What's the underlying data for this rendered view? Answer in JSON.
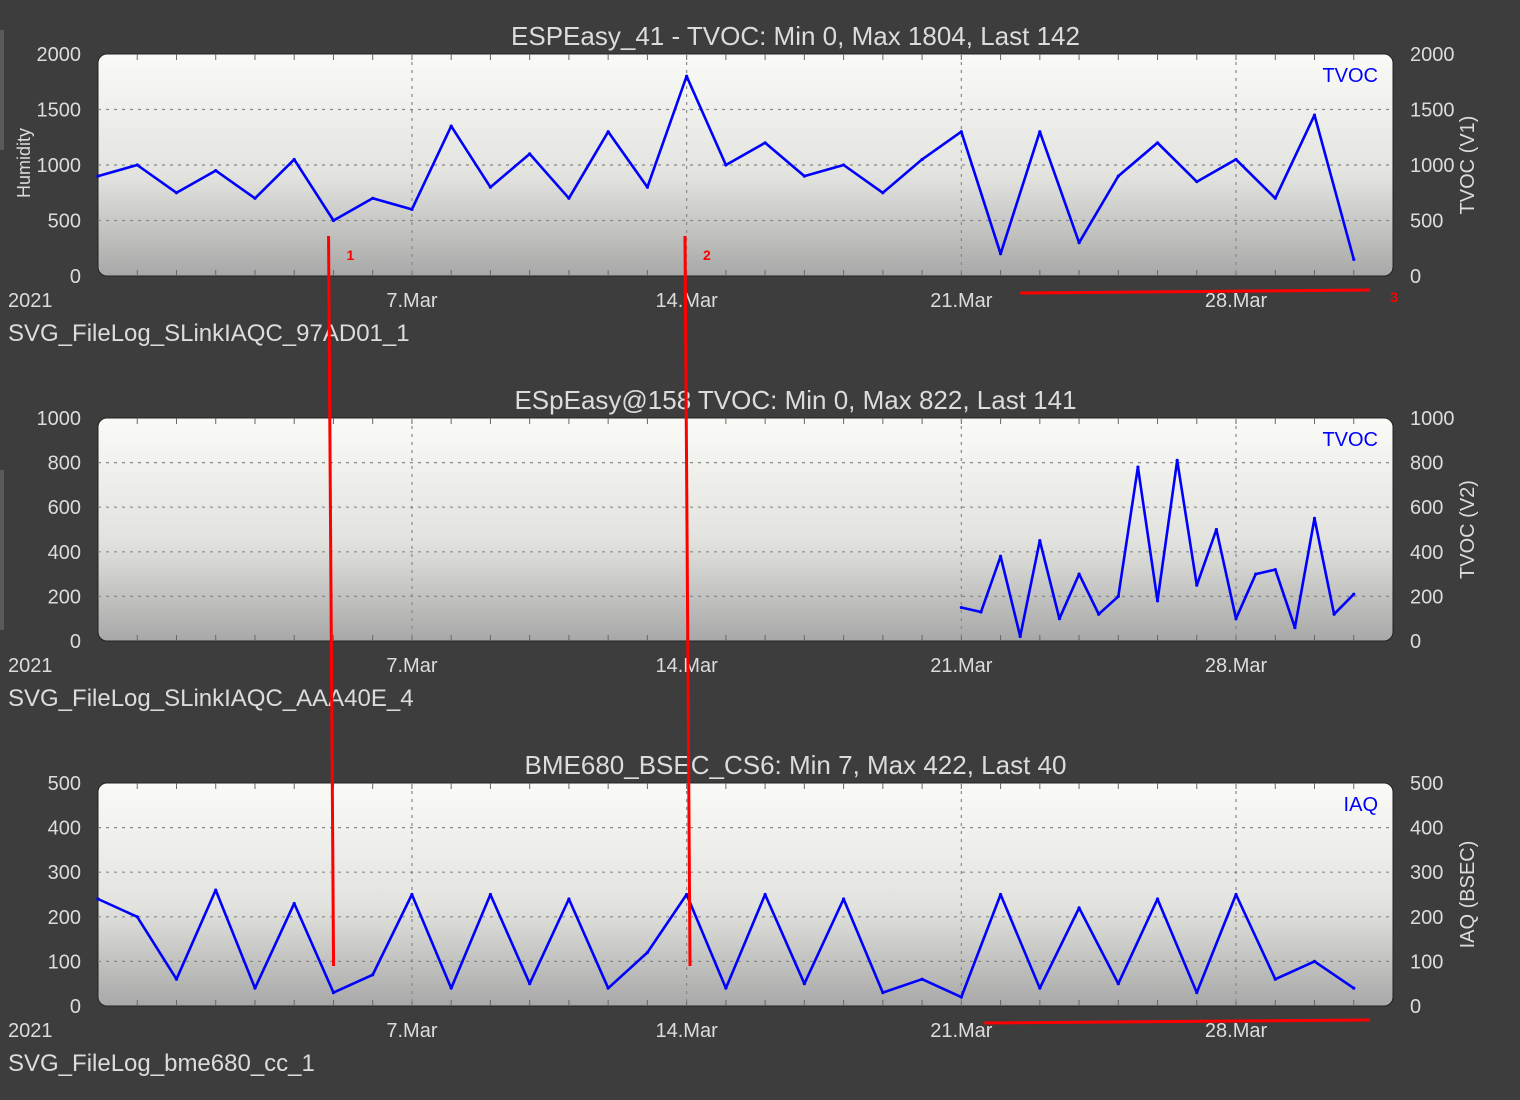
{
  "colors": {
    "background": "#3d3d3d",
    "series": "#0000ff",
    "plot_top": "#fafaf6",
    "plot_bottom": "#a8a8a8",
    "text": "#dcdcdc",
    "grid": "#888888",
    "annotation": "#ff0000"
  },
  "x_axis": {
    "range": [
      "2021-02-27",
      "2021-04-01"
    ],
    "ticks": [
      {
        "date": "2021-03-07",
        "label": "7.Mar"
      },
      {
        "date": "2021-03-14",
        "label": "14.Mar"
      },
      {
        "date": "2021-03-21",
        "label": "21.Mar"
      },
      {
        "date": "2021-03-28",
        "label": "28.Mar"
      }
    ],
    "minor_grid_interval": "day",
    "major_grid_interval": "week",
    "year_label": "2021"
  },
  "annotations": {
    "labels": [
      "1",
      "2",
      "3"
    ],
    "vertical_markers": [
      {
        "label": "1",
        "date": "2021-03-04T21:00"
      },
      {
        "label": "2",
        "date": "2021-03-13T23:00"
      }
    ],
    "underlines": [
      {
        "label": "3",
        "chart": 0,
        "from": "2021-03-22T12:00",
        "to": "2021-03-31T10:00"
      },
      {
        "label": "",
        "chart": 2,
        "from": "2021-03-21T14:00",
        "to": "2021-03-31T10:00"
      }
    ]
  },
  "chart_data": [
    {
      "type": "line",
      "title": "ESPEasy_41 - TVOC: Min 0, Max 1804, Last 142",
      "file_label": "SVG_FileLog_SLinkIAQC_97AD01_1",
      "ylabel_left": "Humidity",
      "ylabel_right": "TVOC (V1)",
      "legend": "TVOC",
      "legend_position": "top-right",
      "ylim": [
        0,
        2000
      ],
      "yticks": [
        0,
        500,
        1000,
        1500,
        2000
      ],
      "grid": true,
      "series": [
        {
          "name": "TVOC",
          "x": [
            "2021-02-27",
            "2021-02-28",
            "2021-03-01",
            "2021-03-02",
            "2021-03-03",
            "2021-03-04",
            "2021-03-05",
            "2021-03-06",
            "2021-03-07",
            "2021-03-08",
            "2021-03-09",
            "2021-03-10",
            "2021-03-11",
            "2021-03-12",
            "2021-03-13",
            "2021-03-14",
            "2021-03-15",
            "2021-03-16",
            "2021-03-17",
            "2021-03-18",
            "2021-03-19",
            "2021-03-20",
            "2021-03-21",
            "2021-03-22",
            "2021-03-23",
            "2021-03-24",
            "2021-03-25",
            "2021-03-26",
            "2021-03-27",
            "2021-03-28",
            "2021-03-29",
            "2021-03-30",
            "2021-03-31"
          ],
          "values": [
            900,
            1000,
            750,
            950,
            700,
            1050,
            500,
            700,
            600,
            1350,
            800,
            1100,
            700,
            1300,
            800,
            1800,
            1000,
            1200,
            900,
            1000,
            750,
            1050,
            1300,
            200,
            1300,
            300,
            900,
            1200,
            850,
            1050,
            700,
            1450,
            150
          ]
        }
      ]
    },
    {
      "type": "line",
      "title": "ESpEasy@158 TVOC: Min 0, Max 822, Last 141",
      "file_label": "SVG_FileLog_SLinkIAQC_AAA40E_4",
      "ylabel_right": "TVOC (V2)",
      "legend": "TVOC",
      "legend_position": "top-right",
      "ylim": [
        0,
        1000
      ],
      "yticks": [
        0,
        200,
        400,
        600,
        800,
        1000
      ],
      "grid": true,
      "series": [
        {
          "name": "TVOC",
          "x": [
            "2021-03-21",
            "2021-03-21T12:00",
            "2021-03-22",
            "2021-03-22T12:00",
            "2021-03-23",
            "2021-03-23T12:00",
            "2021-03-24",
            "2021-03-24T12:00",
            "2021-03-25",
            "2021-03-25T12:00",
            "2021-03-26",
            "2021-03-26T12:00",
            "2021-03-27",
            "2021-03-27T12:00",
            "2021-03-28",
            "2021-03-28T12:00",
            "2021-03-29",
            "2021-03-29T12:00",
            "2021-03-30",
            "2021-03-30T12:00",
            "2021-03-31"
          ],
          "values": [
            150,
            130,
            380,
            20,
            450,
            100,
            300,
            120,
            200,
            780,
            180,
            810,
            250,
            500,
            100,
            300,
            320,
            60,
            550,
            120,
            210
          ]
        }
      ]
    },
    {
      "type": "line",
      "title": "BME680_BSEC_CS6: Min 7, Max 422, Last 40",
      "file_label": "SVG_FileLog_bme680_cc_1",
      "ylabel_right": "IAQ (BSEC)",
      "legend": "IAQ",
      "legend_position": "top-right",
      "ylim": [
        0,
        500
      ],
      "yticks": [
        0,
        100,
        200,
        300,
        400,
        500
      ],
      "grid": true,
      "series": [
        {
          "name": "IAQ",
          "x": [
            "2021-02-27",
            "2021-02-28",
            "2021-03-01",
            "2021-03-02",
            "2021-03-03",
            "2021-03-04",
            "2021-03-05",
            "2021-03-06",
            "2021-03-07",
            "2021-03-08",
            "2021-03-09",
            "2021-03-10",
            "2021-03-11",
            "2021-03-12",
            "2021-03-13",
            "2021-03-14",
            "2021-03-15",
            "2021-03-16",
            "2021-03-17",
            "2021-03-18",
            "2021-03-19",
            "2021-03-20",
            "2021-03-21",
            "2021-03-22",
            "2021-03-23",
            "2021-03-24",
            "2021-03-25",
            "2021-03-26",
            "2021-03-27",
            "2021-03-28",
            "2021-03-29",
            "2021-03-30",
            "2021-03-31"
          ],
          "values": [
            240,
            200,
            60,
            260,
            40,
            230,
            30,
            70,
            250,
            40,
            250,
            50,
            240,
            40,
            120,
            250,
            40,
            250,
            50,
            240,
            30,
            60,
            20,
            250,
            40,
            220,
            50,
            240,
            30,
            250,
            60,
            100,
            40
          ]
        }
      ]
    }
  ]
}
